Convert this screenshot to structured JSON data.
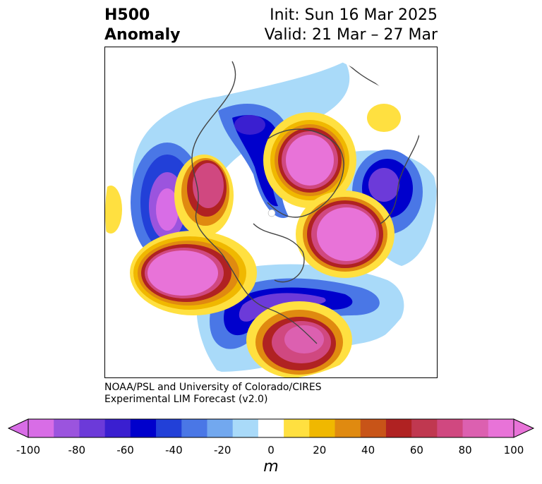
{
  "title": {
    "line1": "H500",
    "line2": "Anomaly"
  },
  "forecast": {
    "init": "Init: Sun 16 Mar 2025",
    "valid": "Valid: 21 Mar – 27 Mar"
  },
  "credit": {
    "line1": "NOAA/PSL and University of Colorado/CIRES",
    "line2": "Experimental LIM Forecast (v2.0)"
  },
  "colorbar": {
    "unit": "m",
    "ticks": [
      "-100",
      "-80",
      "-60",
      "-40",
      "-20",
      "0",
      "20",
      "40",
      "60",
      "80",
      "100"
    ],
    "colors": [
      "#d86de6",
      "#9b54de",
      "#6c3ad9",
      "#3a1fd0",
      "#0000cc",
      "#2240d8",
      "#4a77e6",
      "#72a8ef",
      "#a9daf9",
      "#ffffff",
      "#ffe040",
      "#f0b800",
      "#e08a10",
      "#c85418",
      "#b02222",
      "#c03850",
      "#d04880",
      "#dc60b0",
      "#e873d8"
    ],
    "min_color": "#d86de6",
    "max_color": "#e873d8"
  }
}
